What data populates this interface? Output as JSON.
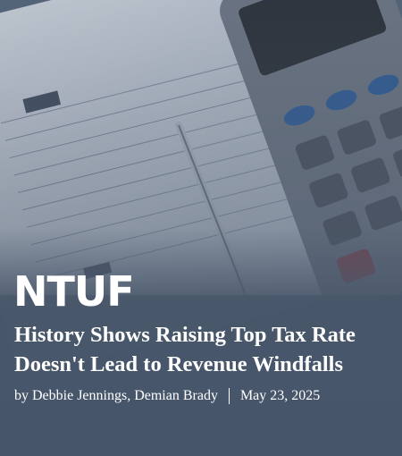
{
  "logo": "NTUF",
  "article": {
    "title": [
      "History Shows Raising Top Tax Rate",
      "Doesn't Lead to Revenue Windfalls"
    ],
    "byline": "by Debbie Jennings, Demian Brady",
    "date": "May 23, 2025"
  }
}
